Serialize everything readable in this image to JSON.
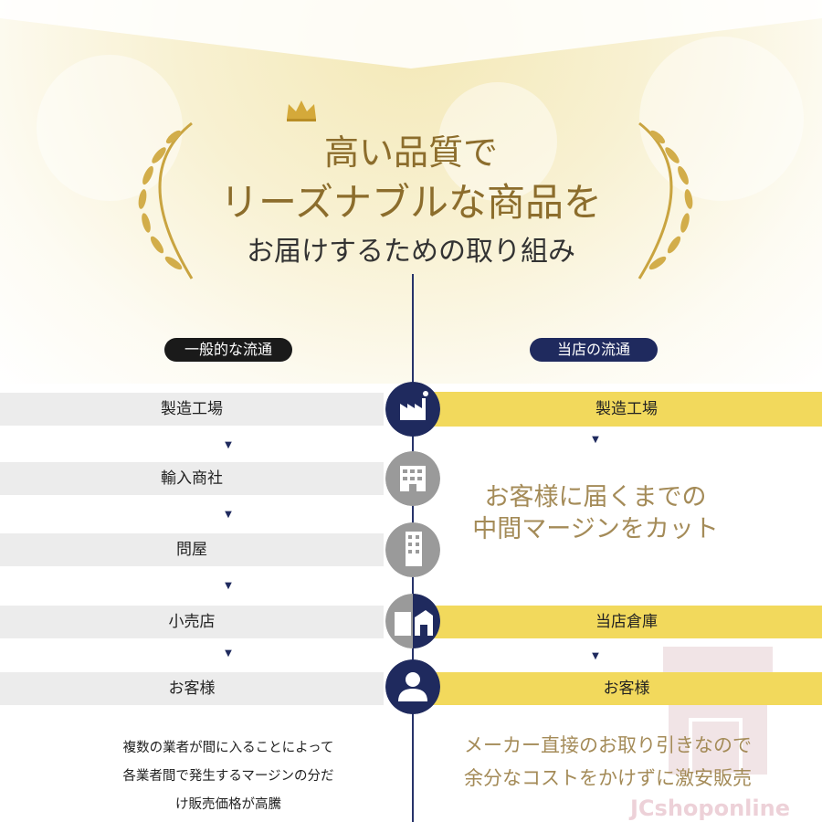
{
  "header": {
    "line1": "高い品質で",
    "line2": "リーズナブルな商品を",
    "line3": "お届けするための取り組み"
  },
  "left": {
    "badge": "一般的な流通",
    "steps": [
      "製造工場",
      "輸入商社",
      "問屋",
      "小売店",
      "お客様"
    ],
    "note": [
      "複数の業者が間に入ることによって",
      "各業者間で発生するマージンの分だ",
      "け販売価格が高騰"
    ]
  },
  "right": {
    "badge": "当店の流通",
    "steps": [
      "製造工場",
      "当店倉庫",
      "お客様"
    ],
    "message": [
      "お客様に届くまでの",
      "中間マージンをカット"
    ],
    "note": [
      "メーカー直接のお取り引きなので",
      "余分なコストをかけずに激安販売"
    ]
  },
  "icons": [
    "factory-icon",
    "office-building-icon",
    "tall-building-icon",
    "store-icon",
    "person-icon"
  ],
  "watermark": "JCshoponline",
  "colors": {
    "navy": "#1f2a5e",
    "yellow": "#f2d95c",
    "gray": "#ececec",
    "gold": "#8c6d2c"
  }
}
